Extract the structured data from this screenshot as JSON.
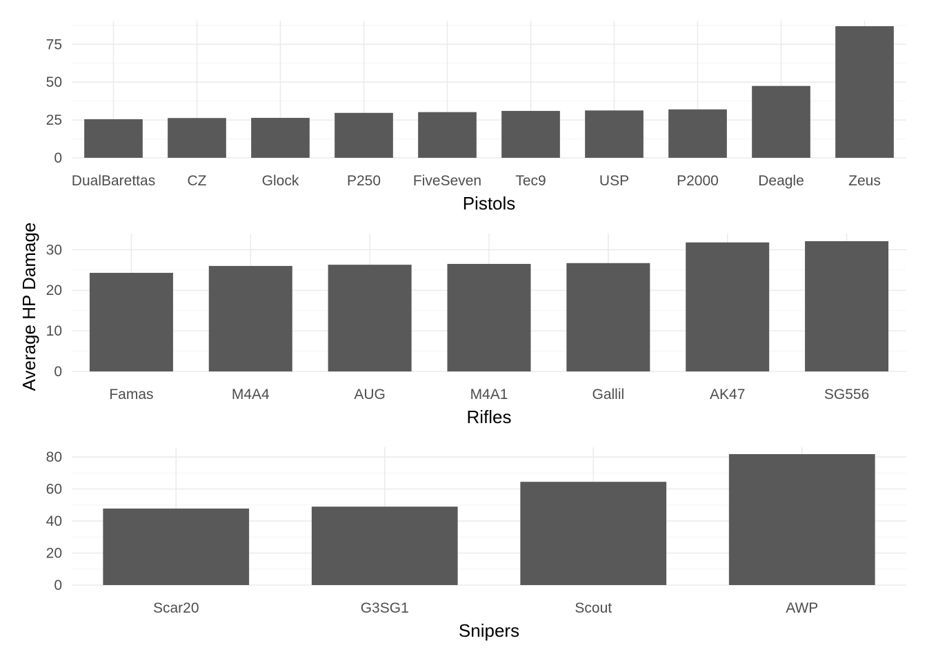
{
  "ylabel": "Average HP Damage",
  "colors": {
    "bar": "#595959",
    "grid_major": "#ebebeb",
    "grid_minor": "#f3f3f3",
    "tick_text": "#4d4d4d",
    "title_text": "#000000",
    "background": "#ffffff"
  },
  "chart_data": [
    {
      "type": "bar",
      "xlabel": "Pistols",
      "categories": [
        "DualBarettas",
        "CZ",
        "Glock",
        "P250",
        "FiveSeven",
        "Tec9",
        "USP",
        "P2000",
        "Deagle",
        "Zeus"
      ],
      "values": [
        25.5,
        26.3,
        26.4,
        29.7,
        30.2,
        31.0,
        31.3,
        32.0,
        47.5,
        87.0
      ],
      "yticks": [
        0,
        25,
        50,
        75
      ],
      "ylim": [
        0,
        87
      ],
      "grid": true
    },
    {
      "type": "bar",
      "xlabel": "Rifles",
      "categories": [
        "Famas",
        "M4A4",
        "AUG",
        "M4A1",
        "Gallil",
        "AK47",
        "SG556"
      ],
      "values": [
        24.3,
        26.0,
        26.3,
        26.5,
        26.7,
        31.8,
        32.1
      ],
      "yticks": [
        0,
        10,
        20,
        30
      ],
      "ylim": [
        0,
        32.1
      ],
      "grid": true
    },
    {
      "type": "bar",
      "xlabel": "Snipers",
      "categories": [
        "Scar20",
        "G3SG1",
        "Scout",
        "AWP"
      ],
      "values": [
        47.8,
        49.0,
        64.5,
        81.8
      ],
      "yticks": [
        0,
        20,
        40,
        60,
        80
      ],
      "ylim": [
        0,
        81.8
      ],
      "grid": true
    }
  ]
}
